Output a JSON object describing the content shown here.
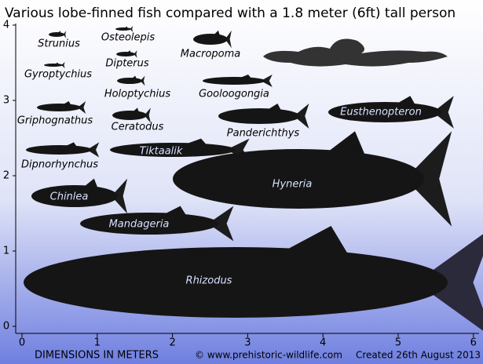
{
  "title": "Various lobe-finned fish compared with a 1.8 meter (6ft) tall person",
  "x_axis": {
    "label": "DIMENSIONS IN METERS",
    "ticks": [
      0,
      1,
      2,
      3,
      4,
      5,
      6
    ]
  },
  "y_axis": {
    "ticks": [
      0,
      1,
      2,
      3,
      4
    ]
  },
  "credit": "© www.prehistoric-wildlife.com",
  "created": "Created 26th August 2013",
  "fish": [
    "Strunius",
    "Osteolepis",
    "Macropoma",
    "Gyroptychius",
    "Dipterus",
    "Holoptychius",
    "Gooloogongia",
    "Griphognathus",
    "Ceratodus",
    "Panderichthys",
    "Eusthenopteron",
    "Tiktaalik",
    "Dipnorhynchus",
    "Hyneria",
    "Chinlea",
    "Mandageria",
    "Rhizodus"
  ]
}
